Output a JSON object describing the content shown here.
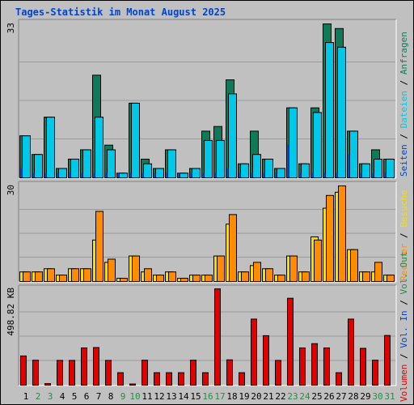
{
  "title": "Tages-Statistik im Monat August 2025",
  "colors": {
    "background": "#c0c0c0",
    "hits": "#0f7a5a",
    "files": "#00c8e8",
    "pages": "#00e0ff",
    "visits": "#f5e000",
    "sites": "#ff8c00",
    "kbytes": "#e00000",
    "title": "#0044cc",
    "weekend": "#2a8a4a"
  },
  "chart_data": [
    {
      "type": "bar",
      "name": "top",
      "ylim": [
        0,
        33
      ],
      "max_label": "33",
      "legend": [
        {
          "text": "Anfragen",
          "color": "#0f7a5a"
        },
        {
          "text": "Dateien",
          "color": "#00c8e8"
        },
        {
          "text": "Seiten",
          "color": "#0044cc"
        }
      ],
      "categories": [
        "1",
        "2",
        "3",
        "4",
        "5",
        "6",
        "7",
        "8",
        "9",
        "10",
        "11",
        "12",
        "13",
        "14",
        "15",
        "16",
        "17",
        "18",
        "19",
        "20",
        "21",
        "22",
        "23",
        "24",
        "25",
        "26",
        "27",
        "28",
        "29",
        "30",
        "31"
      ],
      "series": [
        {
          "name": "Anfragen",
          "values": [
            9,
            5,
            13,
            2,
            4,
            6,
            22,
            7,
            1,
            16,
            4,
            2,
            6,
            1,
            2,
            10,
            11,
            21,
            3,
            10,
            4,
            2,
            15,
            3,
            15,
            33,
            32,
            10,
            3,
            6,
            4
          ]
        },
        {
          "name": "Dateien",
          "values": [
            9,
            5,
            13,
            2,
            4,
            6,
            13,
            6,
            1,
            16,
            3,
            2,
            6,
            1,
            2,
            8,
            8,
            18,
            3,
            5,
            4,
            2,
            15,
            3,
            14,
            29,
            28,
            10,
            3,
            4,
            4
          ]
        },
        {
          "name": "Seiten",
          "values": [
            2,
            1,
            1,
            1,
            1,
            1,
            1,
            1,
            1,
            1,
            1,
            1,
            1,
            1,
            1,
            1,
            1,
            2,
            1,
            1,
            1,
            1,
            7,
            1,
            1,
            1,
            1,
            5,
            1,
            1,
            1
          ]
        }
      ]
    },
    {
      "type": "bar",
      "name": "middle",
      "ylim": [
        0,
        30
      ],
      "max_label": "30",
      "legend": [
        {
          "text": "Besuche",
          "color": "#f5e000"
        },
        {
          "text": "Rechner",
          "color": "#ff8c00"
        }
      ],
      "categories": [
        "1",
        "2",
        "3",
        "4",
        "5",
        "6",
        "7",
        "8",
        "9",
        "10",
        "11",
        "12",
        "13",
        "14",
        "15",
        "16",
        "17",
        "18",
        "19",
        "20",
        "21",
        "22",
        "23",
        "24",
        "25",
        "26",
        "27",
        "28",
        "29",
        "30",
        "31"
      ],
      "series": [
        {
          "name": "Besuche",
          "values": [
            3,
            3,
            4,
            2,
            4,
            4,
            13,
            6,
            1,
            8,
            3,
            2,
            3,
            1,
            2,
            2,
            8,
            18,
            3,
            5,
            4,
            2,
            8,
            3,
            14,
            23,
            28,
            10,
            3,
            3,
            2
          ]
        },
        {
          "name": "Rechner",
          "values": [
            3,
            3,
            4,
            2,
            4,
            4,
            22,
            7,
            1,
            8,
            4,
            2,
            3,
            1,
            2,
            2,
            8,
            21,
            3,
            6,
            4,
            2,
            8,
            3,
            13,
            27,
            30,
            10,
            3,
            6,
            2
          ]
        }
      ]
    },
    {
      "type": "bar",
      "name": "bottom",
      "ylim": [
        0,
        498.82
      ],
      "max_label": "498.82 KB",
      "legend": [
        {
          "text": "Volumen",
          "color": "#e00000"
        },
        {
          "text": "Vol. In",
          "color": "#0044cc"
        },
        {
          "text": "Vol. Out",
          "color": "#2a8a4a"
        }
      ],
      "categories": [
        "1",
        "2",
        "3",
        "4",
        "5",
        "6",
        "7",
        "8",
        "9",
        "10",
        "11",
        "12",
        "13",
        "14",
        "15",
        "16",
        "17",
        "18",
        "19",
        "20",
        "21",
        "22",
        "23",
        "24",
        "25",
        "26",
        "27",
        "28",
        "29",
        "30",
        "31"
      ],
      "series": [
        {
          "name": "Volumen",
          "values": [
            150,
            128,
            8,
            127,
            127,
            191,
            193,
            127,
            64,
            6,
            128,
            64,
            64,
            64,
            128,
            64,
            494,
            130,
            64,
            339,
            254,
            127,
            446,
            191,
            213,
            191,
            64,
            339,
            189,
            128,
            255
          ]
        }
      ]
    }
  ],
  "x_axis": {
    "labels": [
      "1",
      "2",
      "3",
      "4",
      "5",
      "6",
      "7",
      "8",
      "9",
      "10",
      "11",
      "12",
      "13",
      "14",
      "15",
      "16",
      "17",
      "18",
      "19",
      "20",
      "21",
      "22",
      "23",
      "24",
      "25",
      "26",
      "27",
      "28",
      "29",
      "30",
      "31"
    ],
    "weekend_days": [
      "2",
      "3",
      "9",
      "10",
      "16",
      "17",
      "23",
      "24",
      "30",
      "31"
    ]
  }
}
